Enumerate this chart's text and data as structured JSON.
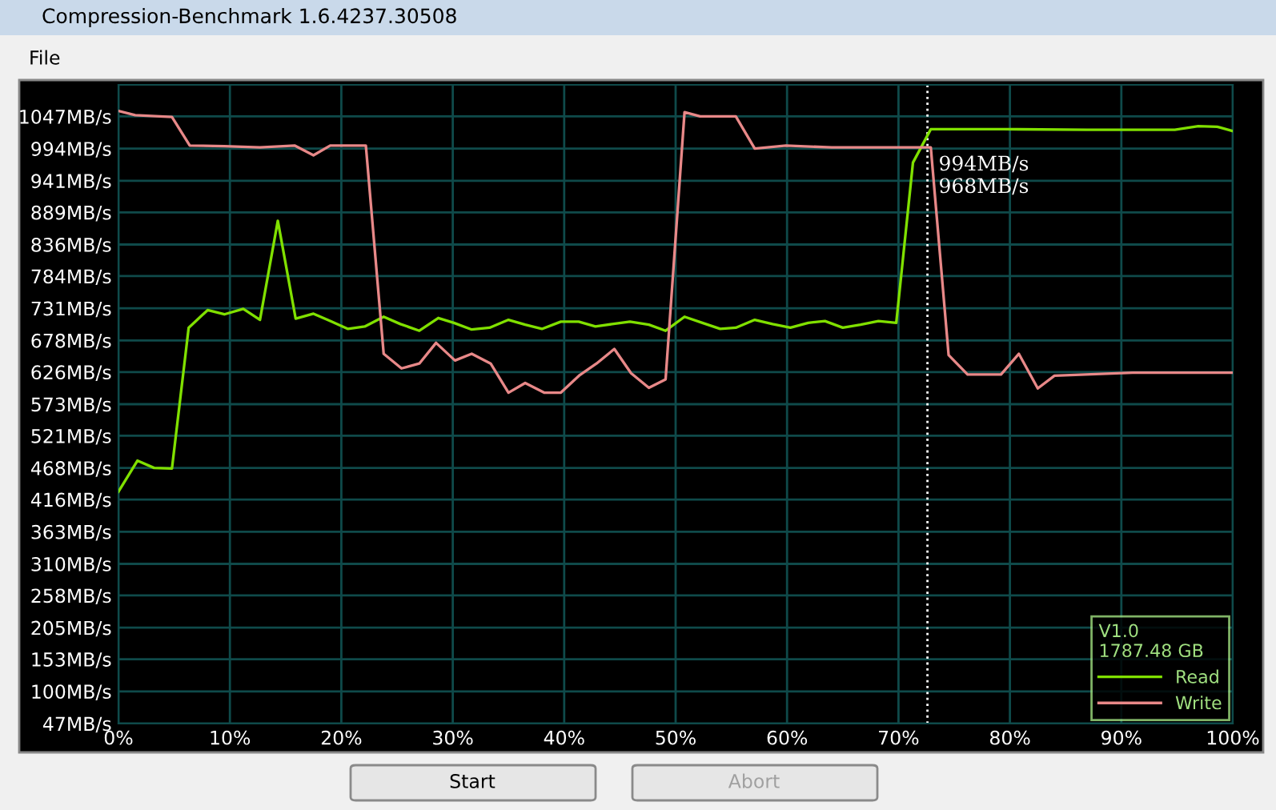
{
  "chart_data": {
    "type": "line",
    "title": "Compression-Benchmark 1.6.4237.30508",
    "legend_title": "V1.0\n1787.48 GB",
    "annotations": [
      "File",
      "Start",
      "Abort",
      {
        "text": "994MB/s\n968MB/s",
        "x": 72.6,
        "y": 994
      }
    ],
    "series": [
      {
        "name": "Read",
        "color": "#80e000",
        "x": [
          0,
          1.7,
          3.2,
          4.8,
          6.3,
          8,
          9.5,
          11.2,
          12.7,
          14.3,
          15.9,
          17.5,
          19,
          20.6,
          22.1,
          23.8,
          25.3,
          27,
          28.7,
          30.1,
          31.7,
          33.3,
          35,
          36.5,
          38,
          39.7,
          41.3,
          42.8,
          44.3,
          45.9,
          47.6,
          49.1,
          50.8,
          52.4,
          54,
          55.4,
          57.1,
          58.7,
          60.3,
          61.9,
          63.4,
          65,
          66.6,
          68.2,
          69.8,
          71.3,
          72.9,
          79.4,
          86.9,
          94.8,
          96.9,
          98.6,
          100
        ],
        "values": [
          429,
          480,
          468,
          467,
          699,
          728,
          721,
          730,
          712,
          875,
          714,
          722,
          710,
          697,
          701,
          717,
          705,
          694,
          715,
          707,
          696,
          699,
          712,
          704,
          697,
          709,
          709,
          701,
          705,
          709,
          704,
          694,
          717,
          707,
          697,
          699,
          712,
          705,
          699,
          707,
          710,
          699,
          704,
          710,
          707,
          971,
          1026,
          1026,
          1025,
          1025,
          1031,
          1030,
          1023
        ]
      },
      {
        "name": "Write",
        "color": "#e88888",
        "x": [
          0,
          1.5,
          4.8,
          6.4,
          9.5,
          12.7,
          15.8,
          17.5,
          19,
          22.2,
          23.8,
          25.4,
          27,
          28.5,
          30.2,
          31.7,
          33.4,
          35,
          36.5,
          38.2,
          39.7,
          41.4,
          42.9,
          44.5,
          46,
          47.6,
          49.1,
          50.8,
          52.2,
          55.4,
          57.1,
          59.9,
          64,
          69.7,
          72.9,
          74.5,
          76.2,
          79.2,
          80.8,
          82.5,
          84,
          91,
          100
        ],
        "values": [
          1056,
          1049,
          1046,
          999,
          998,
          996,
          999,
          983,
          999,
          999,
          656,
          632,
          640,
          674,
          645,
          656,
          640,
          592,
          608,
          592,
          592,
          621,
          640,
          664,
          624,
          600,
          614,
          1054,
          1047,
          1047,
          994,
          999,
          996,
          996,
          996,
          654,
          622,
          622,
          656,
          599,
          620,
          625,
          625
        ]
      }
    ],
    "xlim": [
      0,
      100
    ],
    "xticks": [
      {
        "value": 0,
        "label": "0%"
      },
      {
        "value": 10,
        "label": "10%"
      },
      {
        "value": 20,
        "label": "20%"
      },
      {
        "value": 30,
        "label": "30%"
      },
      {
        "value": 40,
        "label": "40%"
      },
      {
        "value": 50,
        "label": "50%"
      },
      {
        "value": 60,
        "label": "60%"
      },
      {
        "value": 70,
        "label": "70%"
      },
      {
        "value": 80,
        "label": "80%"
      },
      {
        "value": 90,
        "label": "90%"
      },
      {
        "value": 100,
        "label": "100%"
      }
    ],
    "ylim": [
      47,
      1099
    ],
    "yticks": [
      {
        "value": 47,
        "label": "47MB/s"
      },
      {
        "value": 100,
        "label": "100MB/s"
      },
      {
        "value": 153,
        "label": "153MB/s"
      },
      {
        "value": 205,
        "label": "205MB/s"
      },
      {
        "value": 258,
        "label": "258MB/s"
      },
      {
        "value": 310,
        "label": "310MB/s"
      },
      {
        "value": 363,
        "label": "363MB/s"
      },
      {
        "value": 416,
        "label": "416MB/s"
      },
      {
        "value": 468,
        "label": "468MB/s"
      },
      {
        "value": 521,
        "label": "521MB/s"
      },
      {
        "value": 573,
        "label": "573MB/s"
      },
      {
        "value": 626,
        "label": "626MB/s"
      },
      {
        "value": 678,
        "label": "678MB/s"
      },
      {
        "value": 731,
        "label": "731MB/s"
      },
      {
        "value": 784,
        "label": "784MB/s"
      },
      {
        "value": 836,
        "label": "836MB/s"
      },
      {
        "value": 889,
        "label": "889MB/s"
      },
      {
        "value": 941,
        "label": "941MB/s"
      },
      {
        "value": 994,
        "label": "994MB/s"
      },
      {
        "value": 1047,
        "label": "1047MB/s"
      }
    ],
    "ref_lines": [
      {
        "axis": "x",
        "value": 72.6,
        "color": "#ffffff",
        "line_style": "dotted"
      }
    ],
    "grid": true,
    "legend": "bottom right",
    "marker": "none",
    "line_style": "solid"
  }
}
